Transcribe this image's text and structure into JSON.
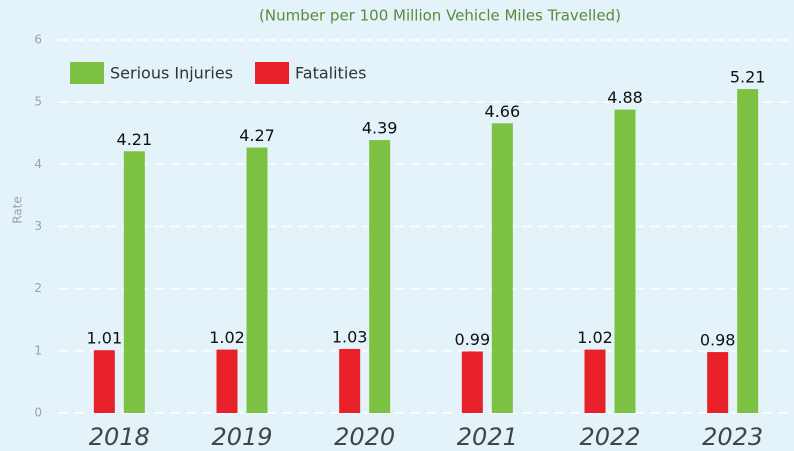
{
  "chart_data": {
    "type": "bar",
    "subtitle": "(Number per 100 Million Vehicle Miles Travelled)",
    "y_label": "Rate",
    "categories": [
      "2018",
      "2019",
      "2020",
      "2021",
      "2022",
      "2023"
    ],
    "series": [
      {
        "name": "Serious Injuries",
        "color": "#7dc142",
        "values": [
          4.21,
          4.27,
          4.39,
          4.66,
          4.88,
          5.21
        ]
      },
      {
        "name": "Fatalities",
        "color": "#e8202a",
        "values": [
          1.01,
          1.02,
          1.03,
          0.99,
          1.02,
          0.98
        ]
      }
    ],
    "ylim": [
      0,
      6
    ],
    "yticks": [
      0,
      1,
      2,
      3,
      4,
      5,
      6
    ],
    "grid": true,
    "legend": "top-left"
  }
}
